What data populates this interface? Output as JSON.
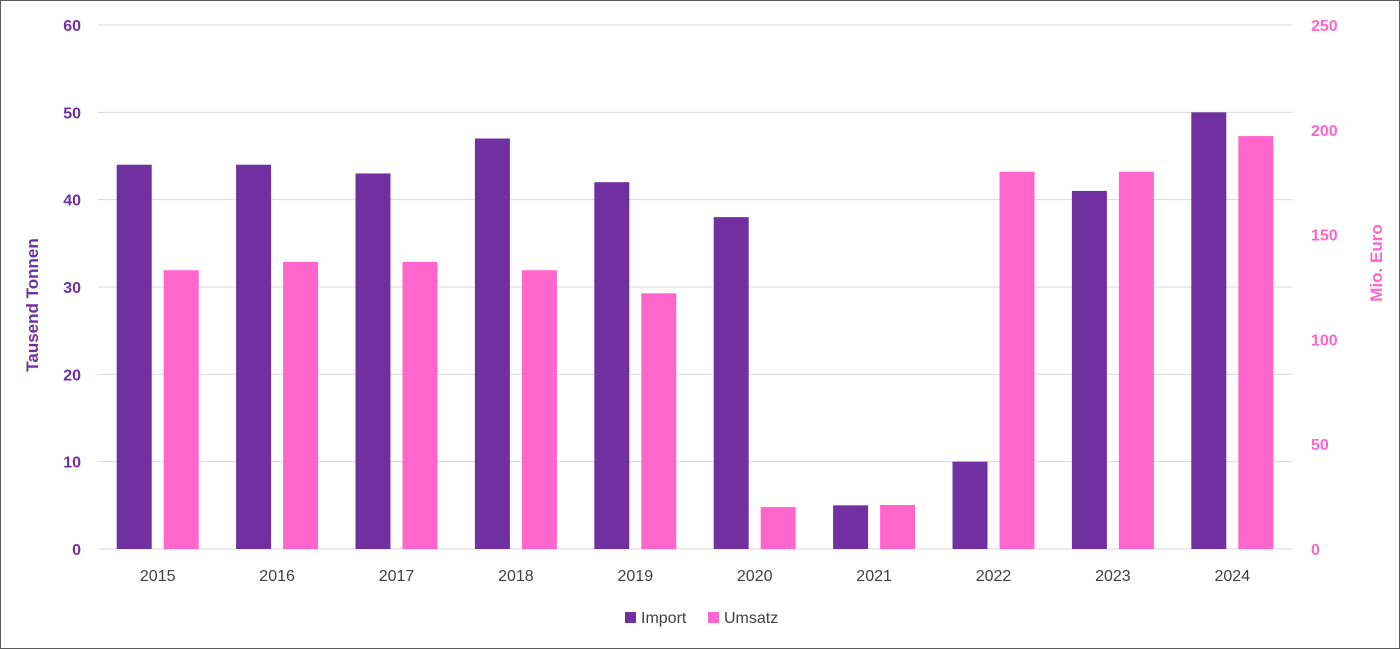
{
  "chart_data": {
    "type": "bar",
    "categories": [
      "2015",
      "2016",
      "2017",
      "2018",
      "2019",
      "2020",
      "2021",
      "2022",
      "2023",
      "2024"
    ],
    "series": [
      {
        "name": "Import",
        "axis": "left",
        "color": "#7030a0",
        "values": [
          44,
          44,
          43,
          47,
          42,
          38,
          5,
          10,
          41,
          50
        ]
      },
      {
        "name": "Umsatz",
        "axis": "right",
        "color": "#ff66cc",
        "values": [
          133,
          137,
          137,
          133,
          122,
          20,
          21,
          180,
          180,
          197
        ]
      }
    ],
    "y_left": {
      "label": "Tausend Tonnen",
      "lim": [
        0,
        60
      ],
      "ticks": [
        0,
        10,
        20,
        30,
        40,
        50,
        60
      ]
    },
    "y_right": {
      "label": "Mio. Euro",
      "lim": [
        0,
        250
      ],
      "ticks": [
        0,
        50,
        100,
        150,
        200,
        250
      ]
    },
    "grid": true,
    "legend_position": "bottom"
  }
}
